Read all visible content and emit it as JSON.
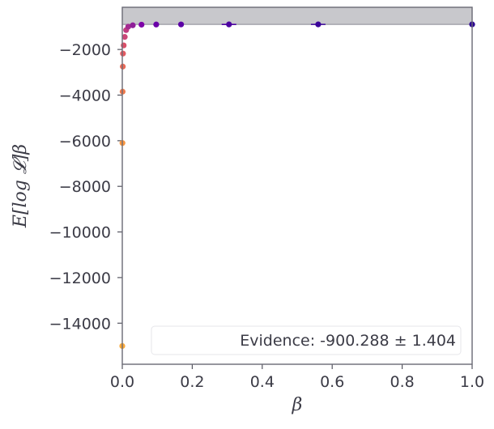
{
  "chart_data": {
    "type": "scatter",
    "title": "",
    "xlabel": "β",
    "ylabel": "E[log 𝓛]β",
    "xlim": [
      0,
      1
    ],
    "ylim": [
      -15800,
      -150
    ],
    "xticks": [
      0,
      0.2,
      0.4,
      0.6,
      0.8,
      1
    ],
    "xtick_labels": [
      "0.0",
      "0.2",
      "0.4",
      "0.6",
      "0.8",
      "1.0"
    ],
    "yticks": [
      -2000,
      -4000,
      -6000,
      -8000,
      -10000,
      -12000,
      -14000
    ],
    "ytick_labels": [
      "−2000",
      "−4000",
      "−6000",
      "−8000",
      "−10000",
      "−12000",
      "−14000"
    ],
    "grid": false,
    "colormap": "plasma",
    "evidence_band": {
      "y_min": -900,
      "y_max": -150,
      "color": "#c8c8cc"
    },
    "legend": {
      "text": "Evidence: -900.288 ± 1.404",
      "placement": "lower right"
    },
    "points": [
      {
        "x": 0.0,
        "y": -15000,
        "color": "#f9a93a"
      },
      {
        "x": 0.0005,
        "y": -6100,
        "color": "#f89540"
      },
      {
        "x": 0.001,
        "y": -3850,
        "color": "#ef7a4d"
      },
      {
        "x": 0.0015,
        "y": -2750,
        "color": "#e96a57"
      },
      {
        "x": 0.002,
        "y": -2180,
        "color": "#e25a62"
      },
      {
        "x": 0.004,
        "y": -1820,
        "color": "#da4f68"
      },
      {
        "x": 0.007,
        "y": -1450,
        "color": "#cc4778"
      },
      {
        "x": 0.011,
        "y": -1150,
        "color": "#c03d80"
      },
      {
        "x": 0.017,
        "y": -1000,
        "color": "#a42b91"
      },
      {
        "x": 0.03,
        "y": -940,
        "color": "#8f1f99"
      },
      {
        "x": 0.055,
        "y": -912,
        "color": "#7e03a8"
      },
      {
        "x": 0.097,
        "y": -905,
        "color": "#6a00a8"
      },
      {
        "x": 0.168,
        "y": -902,
        "color": "#5c01a6"
      },
      {
        "x": 0.305,
        "y": -901,
        "color": "#4c02a1"
      },
      {
        "x": 0.56,
        "y": -900,
        "color": "#3b049a"
      },
      {
        "x": 1.0,
        "y": -900,
        "color": "#2d0593"
      }
    ]
  }
}
